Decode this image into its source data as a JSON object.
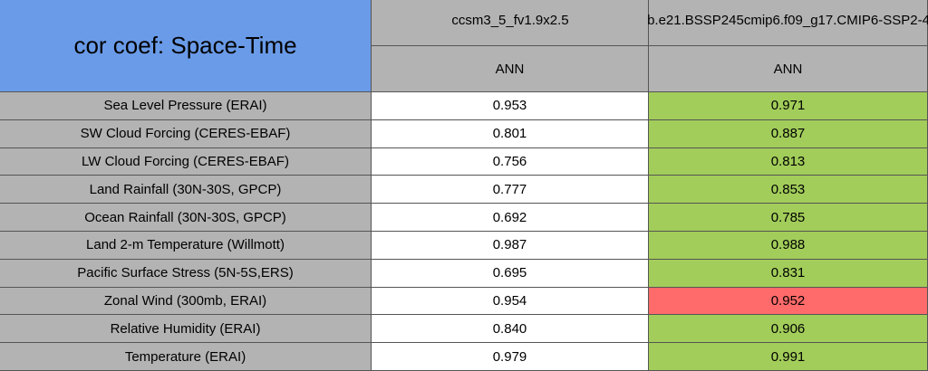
{
  "header": {
    "title": "cor coef: Space-Time",
    "columns": [
      "ccsm3_5_fv1.9x2.5",
      "b.e21.BSSP245cmip6.f09_g17.CMIP6-SSP2-4"
    ],
    "periods": [
      "ANN",
      "ANN"
    ]
  },
  "table": {
    "rows": [
      {
        "label": "Sea Level Pressure (ERAI)",
        "values": [
          "0.953",
          "0.971"
        ],
        "colors": [
          "#ffffff",
          "#a2cd5a"
        ]
      },
      {
        "label": "SW Cloud Forcing (CERES-EBAF)",
        "values": [
          "0.801",
          "0.887"
        ],
        "colors": [
          "#ffffff",
          "#a2cd5a"
        ]
      },
      {
        "label": "LW Cloud Forcing (CERES-EBAF)",
        "values": [
          "0.756",
          "0.813"
        ],
        "colors": [
          "#ffffff",
          "#a2cd5a"
        ]
      },
      {
        "label": "Land Rainfall (30N-30S, GPCP)",
        "values": [
          "0.777",
          "0.853"
        ],
        "colors": [
          "#ffffff",
          "#a2cd5a"
        ]
      },
      {
        "label": "Ocean Rainfall (30N-30S, GPCP)",
        "values": [
          "0.692",
          "0.785"
        ],
        "colors": [
          "#ffffff",
          "#a2cd5a"
        ]
      },
      {
        "label": "Land 2-m Temperature (Willmott)",
        "values": [
          "0.987",
          "0.988"
        ],
        "colors": [
          "#ffffff",
          "#a2cd5a"
        ]
      },
      {
        "label": "Pacific Surface Stress (5N-5S,ERS)",
        "values": [
          "0.695",
          "0.831"
        ],
        "colors": [
          "#ffffff",
          "#a2cd5a"
        ]
      },
      {
        "label": "Zonal Wind (300mb, ERAI)",
        "values": [
          "0.954",
          "0.952"
        ],
        "colors": [
          "#ffffff",
          "#ff6a6a"
        ]
      },
      {
        "label": "Relative Humidity (ERAI)",
        "values": [
          "0.840",
          "0.906"
        ],
        "colors": [
          "#ffffff",
          "#a2cd5a"
        ]
      },
      {
        "label": "Temperature (ERAI)",
        "values": [
          "0.979",
          "0.991"
        ],
        "colors": [
          "#ffffff",
          "#a2cd5a"
        ]
      }
    ]
  }
}
